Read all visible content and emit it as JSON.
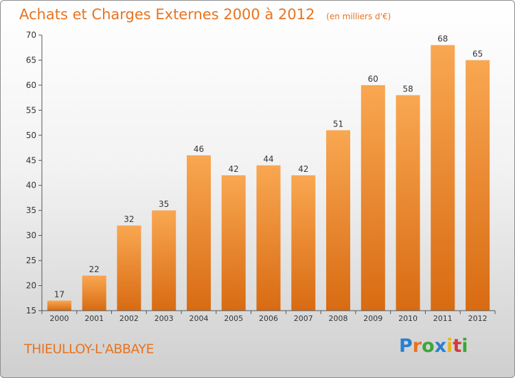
{
  "header": {
    "title": "Achats et Charges Externes 2000 à 2012",
    "subtitle": "(en milliers d'€)"
  },
  "footer": {
    "location": "THIEULLOY-L'ABBAYE",
    "brand_letters": [
      {
        "char": "P",
        "color": "#2a7fd0"
      },
      {
        "char": "r",
        "color": "#e8731f"
      },
      {
        "char": "o",
        "color": "#3aa63a"
      },
      {
        "char": "x",
        "color": "#2a7fd0"
      },
      {
        "char": "i",
        "color": "#e8b51f"
      },
      {
        "char": "t",
        "color": "#d23b3b"
      },
      {
        "char": "i",
        "color": "#3aa63a"
      }
    ]
  },
  "colors": {
    "bar_top": "#f9a752",
    "bar_bottom": "#d86b12",
    "text": "#333333",
    "title": "#e8731f"
  },
  "chart_data": {
    "type": "bar",
    "categories": [
      "2000",
      "2001",
      "2002",
      "2003",
      "2004",
      "2005",
      "2006",
      "2007",
      "2008",
      "2009",
      "2010",
      "2011",
      "2012"
    ],
    "values": [
      17,
      22,
      32,
      35,
      46,
      42,
      44,
      42,
      51,
      60,
      58,
      68,
      65
    ],
    "ylim": [
      15,
      70
    ],
    "yticks": [
      15,
      20,
      25,
      30,
      35,
      40,
      45,
      50,
      55,
      60,
      65,
      70
    ],
    "grid": false
  }
}
